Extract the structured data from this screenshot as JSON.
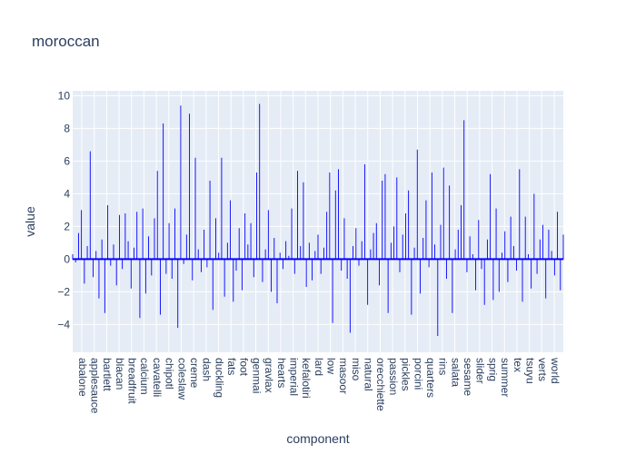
{
  "chart_data": {
    "type": "line",
    "title": "moroccan",
    "xlabel": "component",
    "ylabel": "value",
    "ylim": [
      -5.7,
      10.3
    ],
    "y_ticks": [
      -4,
      -2,
      0,
      2,
      4,
      6,
      8,
      10
    ],
    "x_tick_labels": [
      "abalone",
      "applesauce",
      "bartlett",
      "blacan",
      "breadfruit",
      "calcium",
      "cavatelli",
      "chipotl",
      "coleslaw",
      "creme",
      "dash",
      "duckling",
      "fats",
      "foot",
      "genmai",
      "gravlax",
      "hearts",
      "imperial",
      "kefalotiri",
      "lard",
      "low",
      "masoor",
      "miso",
      "natural",
      "orecchiette",
      "passion",
      "pickles",
      "porcini",
      "quarters",
      "rins",
      "salata",
      "sesame",
      "slider",
      "sprig",
      "summer",
      "tex",
      "tsuyu",
      "verts",
      "world"
    ],
    "grid": true,
    "legend": "none",
    "colors": {
      "line": "#0000ff",
      "plot_bg": "#e5ecf6",
      "grid": "#ffffff",
      "text": "#2a3f5f"
    },
    "series_note": "",
    "series": [
      {
        "name": "",
        "points_per_category": 1,
        "x_index_values": [],
        "values": [
          0.3,
          -0.2,
          1.6,
          3.0,
          -1.5,
          0.8,
          6.6,
          -1.1,
          0.5,
          -2.4,
          1.2,
          -3.3,
          3.3,
          -0.4,
          0.9,
          -1.6,
          2.7,
          -0.6,
          2.8,
          1.1,
          -1.8,
          0.7,
          2.9,
          -3.6,
          3.1,
          -2.1,
          1.4,
          -1.0,
          2.5,
          5.4,
          -3.4,
          8.3,
          -0.9,
          2.2,
          -1.2,
          3.1,
          -4.2,
          9.4,
          -0.3,
          1.5,
          8.9,
          -1.3,
          6.2,
          0.6,
          -0.8,
          1.8,
          -0.5,
          4.8,
          -3.1,
          2.5,
          0.4,
          6.2,
          -2.3,
          1.0,
          3.6,
          -2.6,
          -0.7,
          1.9,
          -1.9,
          2.8,
          0.9,
          2.2,
          -1.1,
          5.3,
          9.5,
          -1.4,
          0.6,
          3.0,
          -2.0,
          1.3,
          -2.7,
          0.4,
          -0.6,
          1.1,
          0.2,
          3.1,
          -0.9,
          5.4,
          0.8,
          4.7,
          -1.7,
          1.0,
          -1.3,
          0.5,
          1.5,
          -0.9,
          0.7,
          2.9,
          5.3,
          -3.9,
          4.2,
          5.5,
          -0.7,
          2.5,
          -1.2,
          -4.5,
          0.8,
          1.9,
          -0.4,
          1.1,
          5.8,
          -2.8,
          0.6,
          1.6,
          2.2,
          -1.6,
          4.8,
          5.2,
          -3.3,
          1.0,
          2.0,
          5.0,
          -0.8,
          1.5,
          2.8,
          4.2,
          -3.4,
          0.7,
          6.7,
          -2.1,
          1.3,
          3.6,
          -0.5,
          5.3,
          0.9,
          -4.7,
          2.1,
          5.6,
          -1.2,
          4.5,
          -3.3,
          0.6,
          1.8,
          3.3,
          8.5,
          -0.8,
          1.4,
          0.3,
          -1.9,
          2.4,
          -0.6,
          -2.8,
          1.2,
          5.2,
          -2.5,
          3.1,
          -2.0,
          0.4,
          1.7,
          -1.4,
          2.6,
          0.8,
          -0.7,
          5.5,
          -2.6,
          2.6,
          0.3,
          -1.8,
          4.0,
          -0.9,
          1.2,
          2.1,
          -2.4,
          1.8,
          0.5,
          -1.0,
          2.9,
          -1.9,
          1.5
        ]
      }
    ]
  }
}
